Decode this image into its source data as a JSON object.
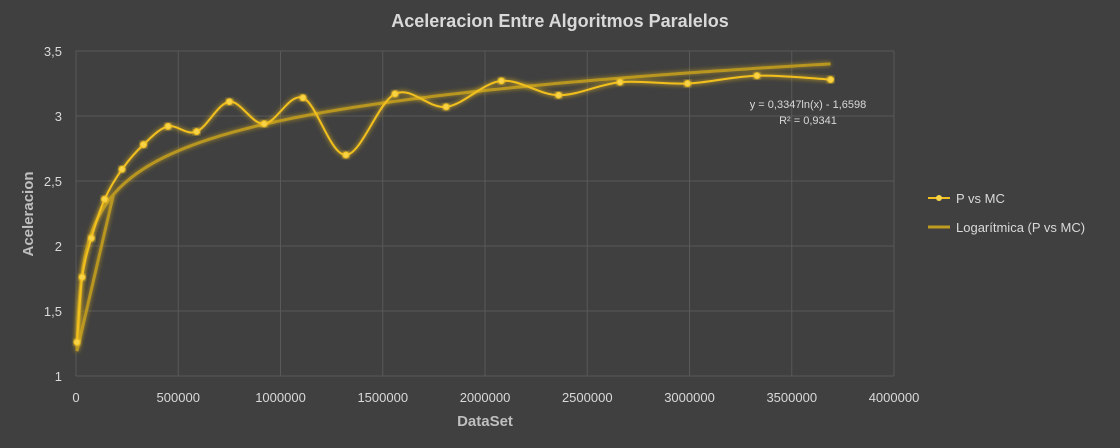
{
  "chart_data": {
    "type": "scatter",
    "title": "Aceleracion Entre Algoritmos Paralelos",
    "xlabel": "DataSet",
    "ylabel": "Aceleracion",
    "xlim": [
      0,
      4000000
    ],
    "ylim": [
      1,
      3.5
    ],
    "x_ticks": [
      0,
      500000,
      1000000,
      1500000,
      2000000,
      2500000,
      3000000,
      3500000,
      4000000
    ],
    "x_tick_labels": [
      "0",
      "500000",
      "1000000",
      "1500000",
      "2000000",
      "2500000",
      "3000000",
      "3500000",
      "4000000"
    ],
    "y_ticks": [
      1,
      1.5,
      2,
      2.5,
      3,
      3.5
    ],
    "y_tick_labels": [
      "1",
      "1,5",
      "2",
      "2,5",
      "3",
      "3,5"
    ],
    "grid": true,
    "legend_position": "right",
    "series": [
      {
        "name": "P vs MC",
        "color": "#f2c01e",
        "marker": "circle",
        "smooth": true,
        "points": [
          [
            5000,
            1.26
          ],
          [
            30000,
            1.76
          ],
          [
            75000,
            2.06
          ],
          [
            140000,
            2.36
          ],
          [
            225000,
            2.59
          ],
          [
            330000,
            2.78
          ],
          [
            450000,
            2.92
          ],
          [
            590000,
            2.88
          ],
          [
            750000,
            3.11
          ],
          [
            920000,
            2.94
          ],
          [
            1110000,
            3.14
          ],
          [
            1320000,
            2.7
          ],
          [
            1560000,
            3.17
          ],
          [
            1810000,
            3.07
          ],
          [
            2080000,
            3.27
          ],
          [
            2360000,
            3.16
          ],
          [
            2660000,
            3.26
          ],
          [
            2990000,
            3.25
          ],
          [
            3330000,
            3.31
          ],
          [
            3690000,
            3.28
          ]
        ]
      },
      {
        "name": "Logarítmica (P vs MC)",
        "color": "#bf9b20",
        "type": "trendline",
        "a": 0.3347,
        "b": -1.6598,
        "x_range": [
          5000,
          3690000
        ]
      }
    ],
    "annotations": {
      "equation": "y = 0,3347ln(x) - 1,6598",
      "r_squared": "R² = 0,9341"
    }
  }
}
